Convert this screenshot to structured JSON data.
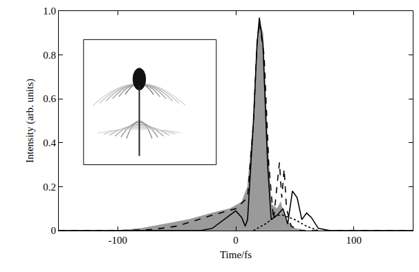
{
  "chart_data": {
    "type": "line",
    "x_label": "Time/fs",
    "y_label": "Intensity (arb. units)",
    "xlim": [
      -150,
      150
    ],
    "xticks": [
      -100,
      0,
      100
    ],
    "ylim": [
      0,
      1
    ],
    "yticks": [
      0,
      0.2,
      0.4,
      0.6,
      0.8,
      {
        "value": 1,
        "label": "1.0"
      }
    ],
    "grid": false,
    "series": [
      {
        "type": "area",
        "color": "#9a9a9a",
        "line_style": "solid",
        "x": [
          -150,
          -100,
          -80,
          -60,
          -40,
          -20,
          -5,
          5,
          10,
          15,
          18,
          20,
          23,
          27,
          30,
          35,
          38,
          42,
          50,
          60,
          150
        ],
        "values": [
          0,
          0,
          0.01,
          0.03,
          0.05,
          0.08,
          0.1,
          0.13,
          0.2,
          0.5,
          0.85,
          0.95,
          0.9,
          0.4,
          0.12,
          0.1,
          0.13,
          0.05,
          0.01,
          0,
          0
        ]
      },
      {
        "type": "line",
        "color": "#000000",
        "line_style": "dashed",
        "x": [
          -150,
          -100,
          -70,
          -50,
          -20,
          0,
          10,
          15,
          18,
          20,
          24,
          28,
          32,
          35,
          37,
          39,
          41,
          43,
          47,
          55,
          150
        ],
        "values": [
          0,
          0,
          0.005,
          0.02,
          0.07,
          0.1,
          0.15,
          0.5,
          0.85,
          0.95,
          0.8,
          0.3,
          0.05,
          0.2,
          0.31,
          0.15,
          0.28,
          0.1,
          0.02,
          0,
          0
        ]
      },
      {
        "type": "line",
        "color": "#000000",
        "line_style": "dotted",
        "x": [
          15,
          25,
          30,
          35,
          40,
          45,
          50,
          60,
          70
        ],
        "values": [
          0,
          0.03,
          0.05,
          0.07,
          0.07,
          0.06,
          0.05,
          0.02,
          0
        ]
      },
      {
        "type": "line",
        "color": "#000000",
        "line_style": "solid",
        "x": [
          -150,
          -30,
          -20,
          -10,
          0,
          5,
          8,
          10,
          15,
          18,
          20,
          23,
          27,
          30,
          35,
          40,
          44,
          48,
          52,
          56,
          60,
          64,
          70,
          80,
          150
        ],
        "values": [
          0,
          0,
          0.01,
          0.05,
          0.09,
          0.06,
          0.02,
          0.05,
          0.5,
          0.85,
          0.97,
          0.85,
          0.3,
          0.05,
          0.07,
          0.1,
          0.03,
          0.18,
          0.15,
          0.05,
          0.08,
          0.06,
          0.01,
          0,
          0
        ]
      }
    ]
  }
}
